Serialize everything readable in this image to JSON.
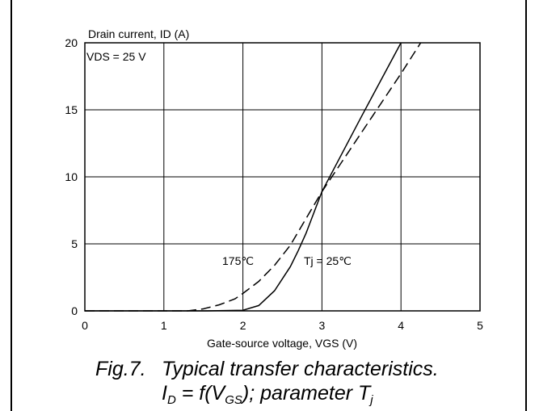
{
  "chart_data": {
    "type": "line",
    "ylabel": "Drain current, ID (A)",
    "xlabel": "Gate-source voltage, VGS (V)",
    "xlim": [
      0,
      5
    ],
    "ylim": [
      0,
      20
    ],
    "x_ticks": [
      "0",
      "1",
      "2",
      "3",
      "4",
      "5"
    ],
    "y_ticks": [
      "0",
      "5",
      "10",
      "15",
      "20"
    ],
    "grid": true,
    "annotations": [
      "VDS = 25 V",
      "175℃",
      "Tj = 25℃"
    ],
    "series": [
      {
        "name": "Tj = 25℃",
        "style": "solid",
        "x": [
          0,
          1.5,
          2.0,
          2.2,
          2.4,
          2.6,
          2.7,
          2.8,
          3.0,
          3.5,
          4.0
        ],
        "y": [
          0,
          0,
          0.05,
          0.4,
          1.5,
          3.3,
          4.5,
          5.8,
          8.9,
          14.5,
          20
        ]
      },
      {
        "name": "175℃",
        "style": "dashed",
        "x": [
          0,
          1.3,
          1.5,
          1.7,
          1.9,
          2.0,
          2.2,
          2.4,
          2.6,
          2.8,
          3.0,
          3.5,
          4.0,
          4.25
        ],
        "y": [
          0,
          0,
          0.15,
          0.45,
          0.9,
          1.3,
          2.2,
          3.4,
          4.9,
          6.9,
          8.9,
          13.3,
          17.7,
          20
        ]
      }
    ]
  },
  "caption": {
    "fig_label": "Fig.7.",
    "line1": "Typical transfer characteristics.",
    "line2_id": "I",
    "line2_id_sub": "D",
    "line2_eq": " = f(V",
    "line2_vgs_sub": "GS",
    "line2_param": "); parameter T",
    "line2_tj_sub": "j"
  }
}
